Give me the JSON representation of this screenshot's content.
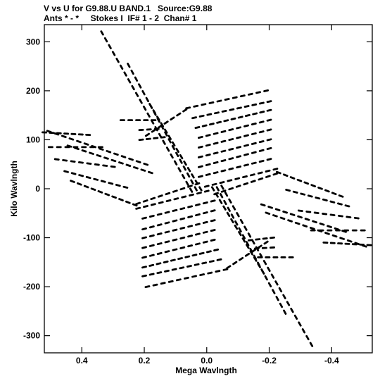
{
  "header": {
    "title": "V vs U for G9.88.U BAND.1   Source:G9.88",
    "subtitle": "Ants * - *     Stokes I  IF# 1 - 2  Chan# 1"
  },
  "chart_data": {
    "type": "scatter",
    "title": "V vs U for G9.88.U BAND.1   Source:G9.88",
    "subtitle": "Ants * - *     Stokes I  IF# 1 - 2  Chan# 1",
    "xlabel": "Mega Wavlngth",
    "ylabel": "Kilo Wavlngth",
    "xlim": [
      0.52,
      -0.53
    ],
    "ylim": [
      -335,
      335
    ],
    "x_ticks": [
      0.4,
      0.2,
      0.0,
      -0.2,
      -0.4
    ],
    "x_tick_labels": [
      "0.4",
      "0.2",
      "0.0",
      "-0.2",
      "-0.4"
    ],
    "y_ticks": [
      300,
      200,
      100,
      0,
      -100,
      -200,
      -300
    ],
    "y_tick_labels": [
      "300",
      "200",
      "100",
      "0",
      "-100",
      "-200",
      "-300"
    ],
    "grid": false,
    "point_color": "#000000",
    "tracks": [
      {
        "from": [
          0.335,
          318
        ],
        "to": [
          0.05,
          -3
        ]
      },
      {
        "from": [
          0.25,
          252
        ],
        "to": [
          0.035,
          0
        ]
      },
      {
        "from": [
          0.18,
          170
        ],
        "to": [
          0.02,
          0
        ]
      },
      {
        "from": [
          -0.335,
          -318
        ],
        "to": [
          -0.05,
          3
        ]
      },
      {
        "from": [
          -0.25,
          -252
        ],
        "to": [
          -0.035,
          0
        ]
      },
      {
        "from": [
          -0.18,
          -170
        ],
        "to": [
          -0.02,
          0
        ]
      },
      {
        "from": [
          0.505,
          117
        ],
        "to": [
          0.195,
          50
        ]
      },
      {
        "from": [
          0.44,
          87
        ],
        "to": [
          0.18,
          33
        ]
      },
      {
        "from": [
          -0.505,
          -117
        ],
        "to": [
          -0.195,
          -50
        ]
      },
      {
        "from": [
          -0.44,
          -87
        ],
        "to": [
          -0.18,
          -33
        ]
      },
      {
        "from": [
          0.27,
          140
        ],
        "to": [
          0.17,
          140
        ]
      },
      {
        "from": [
          0.21,
          120
        ],
        "to": [
          0.16,
          122
        ]
      },
      {
        "from": [
          0.21,
          100
        ],
        "to": [
          0.14,
          105
        ]
      },
      {
        "from": [
          -0.27,
          -140
        ],
        "to": [
          -0.17,
          -140
        ]
      },
      {
        "from": [
          -0.21,
          -120
        ],
        "to": [
          -0.16,
          -122
        ]
      },
      {
        "from": [
          -0.21,
          -100
        ],
        "to": [
          -0.14,
          -105
        ]
      },
      {
        "from": [
          0.06,
          165
        ],
        "to": [
          -0.19,
          200
        ]
      },
      {
        "from": [
          0.04,
          145
        ],
        "to": [
          -0.2,
          178
        ]
      },
      {
        "from": [
          0.03,
          125
        ],
        "to": [
          -0.2,
          160
        ]
      },
      {
        "from": [
          0.02,
          105
        ],
        "to": [
          -0.2,
          140
        ]
      },
      {
        "from": [
          0.02,
          85
        ],
        "to": [
          -0.2,
          120
        ]
      },
      {
        "from": [
          0.02,
          65
        ],
        "to": [
          -0.2,
          100
        ]
      },
      {
        "from": [
          0.02,
          45
        ],
        "to": [
          -0.2,
          82
        ]
      },
      {
        "from": [
          0.02,
          25
        ],
        "to": [
          -0.2,
          60
        ]
      },
      {
        "from": [
          0.0,
          5
        ],
        "to": [
          -0.22,
          40
        ]
      },
      {
        "from": [
          -0.06,
          -165
        ],
        "to": [
          0.19,
          -200
        ]
      },
      {
        "from": [
          -0.04,
          -145
        ],
        "to": [
          0.2,
          -178
        ]
      },
      {
        "from": [
          -0.03,
          -125
        ],
        "to": [
          0.2,
          -160
        ]
      },
      {
        "from": [
          -0.02,
          -105
        ],
        "to": [
          0.2,
          -140
        ]
      },
      {
        "from": [
          -0.02,
          -85
        ],
        "to": [
          0.2,
          -120
        ]
      },
      {
        "from": [
          -0.02,
          -65
        ],
        "to": [
          0.2,
          -100
        ]
      },
      {
        "from": [
          -0.02,
          -45
        ],
        "to": [
          0.2,
          -82
        ]
      },
      {
        "from": [
          -0.02,
          -25
        ],
        "to": [
          0.2,
          -60
        ]
      },
      {
        "from": [
          0.0,
          -5
        ],
        "to": [
          0.22,
          -40
        ]
      },
      {
        "from": [
          0.07,
          160
        ],
        "to": [
          0.19,
          110
        ]
      },
      {
        "from": [
          -0.07,
          -160
        ],
        "to": [
          -0.19,
          -110
        ]
      },
      {
        "from": [
          0.03,
          10
        ],
        "to": [
          0.22,
          -30
        ]
      },
      {
        "from": [
          -0.03,
          -10
        ],
        "to": [
          -0.22,
          30
        ]
      },
      {
        "from": [
          -0.23,
          33
        ],
        "to": [
          -0.43,
          -15
        ]
      },
      {
        "from": [
          -0.26,
          -3
        ],
        "to": [
          -0.45,
          -35
        ]
      },
      {
        "from": [
          -0.3,
          -45
        ],
        "to": [
          -0.48,
          -60
        ]
      },
      {
        "from": [
          -0.34,
          -85
        ],
        "to": [
          -0.5,
          -85
        ]
      },
      {
        "from": [
          -0.38,
          -110
        ],
        "to": [
          -0.52,
          -115
        ]
      },
      {
        "from": [
          0.23,
          -33
        ],
        "to": [
          0.43,
          15
        ]
      },
      {
        "from": [
          0.26,
          3
        ],
        "to": [
          0.45,
          35
        ]
      },
      {
        "from": [
          0.3,
          45
        ],
        "to": [
          0.48,
          60
        ]
      },
      {
        "from": [
          0.34,
          85
        ],
        "to": [
          0.5,
          85
        ]
      },
      {
        "from": [
          0.38,
          110
        ],
        "to": [
          0.52,
          115
        ]
      }
    ]
  }
}
